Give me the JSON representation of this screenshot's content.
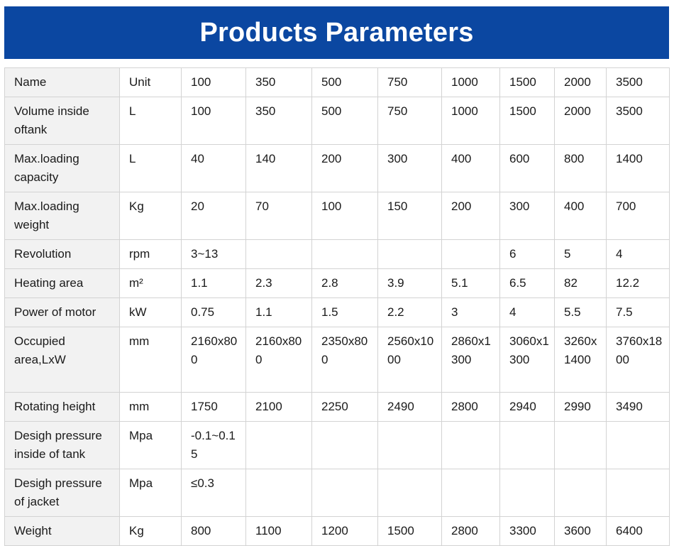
{
  "title": "Products Parameters",
  "colors": {
    "banner_background": "#0b47a1",
    "banner_text": "#ffffff",
    "label_column_background": "#f2f2f2",
    "grid_border": "#d3d3d3"
  },
  "table": {
    "rows": [
      {
        "label": "Name",
        "unit": "Unit",
        "values": [
          "100",
          "350",
          "500",
          "750",
          "1000",
          "1500",
          "2000",
          "3500"
        ]
      },
      {
        "label": "Volume inside oftank",
        "unit": "L",
        "values": [
          "100",
          "350",
          "500",
          "750",
          "1000",
          "1500",
          "2000",
          "3500"
        ]
      },
      {
        "label": "Max.loading capacity",
        "unit": "L",
        "values": [
          "40",
          "140",
          "200",
          "300",
          "400",
          "600",
          "800",
          "1400"
        ]
      },
      {
        "label": "Max.loading weight",
        "unit": "Kg",
        "values": [
          "20",
          "70",
          "100",
          "150",
          "200",
          "300",
          "400",
          "700"
        ]
      },
      {
        "label": "Revolution",
        "unit": "rpm",
        "values": [
          "3~13",
          "",
          "",
          "",
          "",
          "6",
          "5",
          "4"
        ]
      },
      {
        "label": "Heating area",
        "unit": "m²",
        "values": [
          "1.1",
          "2.3",
          "2.8",
          "3.9",
          "5.1",
          "6.5",
          "82",
          "12.2"
        ]
      },
      {
        "label": "Power of motor",
        "unit": "kW",
        "values": [
          "0.75",
          "1.1",
          "1.5",
          "2.2",
          "3",
          "4",
          "5.5",
          "7.5"
        ]
      },
      {
        "label": "Occupied area,LxW",
        "unit": "mm",
        "values": [
          "2160x800",
          "2160x800",
          "2350x800",
          "2560x1000",
          "2860x1300",
          "3060x1300",
          "3260x1400",
          "3760x1800"
        ]
      },
      {
        "label": "Rotating height",
        "unit": "mm",
        "values": [
          "1750",
          "2100",
          "2250",
          "2490",
          "2800",
          "2940",
          "2990",
          "3490"
        ]
      },
      {
        "label": "Desigh pressure inside of tank",
        "unit": "Mpa",
        "values": [
          "-0.1~0.15",
          "",
          "",
          "",
          "",
          "",
          "",
          ""
        ]
      },
      {
        "label": "Desigh pressure of jacket",
        "unit": "Mpa",
        "values": [
          "≤0.3",
          "",
          "",
          "",
          "",
          "",
          "",
          ""
        ]
      },
      {
        "label": "Weight",
        "unit": "Kg",
        "values": [
          "800",
          "1100",
          "1200",
          "1500",
          "2800",
          "3300",
          "3600",
          "6400"
        ]
      }
    ]
  }
}
